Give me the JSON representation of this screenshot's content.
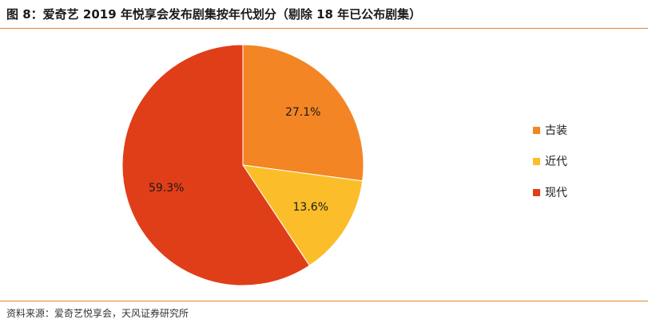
{
  "header": {
    "title": "图 8：爱奇艺 2019 年悦享会发布剧集按年代划分（剔除 18 年已公布剧集）"
  },
  "footer": {
    "source": "资料来源：爱奇艺悦享会，天风证券研究所"
  },
  "colors": {
    "accent_rule": "#e8852c"
  },
  "chart_data": {
    "type": "pie",
    "start_angle_deg": 0,
    "direction": "clockwise",
    "legend_position": "right",
    "slices": [
      {
        "name": "古装",
        "value": 27.1,
        "label": "27.1%",
        "color": "#f38525"
      },
      {
        "name": "近代",
        "value": 13.6,
        "label": "13.6%",
        "color": "#fbbe2a"
      },
      {
        "name": "现代",
        "value": 59.3,
        "label": "59.3%",
        "color": "#e03e18"
      }
    ]
  }
}
